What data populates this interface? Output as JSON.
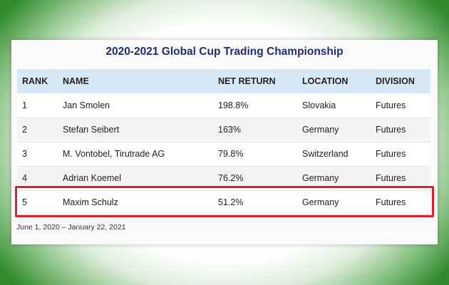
{
  "title": "2020-2021 Global Cup Trading Championship",
  "columns": [
    "RANK",
    "NAME",
    "NET RETURN",
    "LOCATION",
    "DIVISION"
  ],
  "rows": [
    {
      "rank": "1",
      "name": "Jan Smolen",
      "net_return": "198.8%",
      "location": "Slovakia",
      "division": "Futures"
    },
    {
      "rank": "2",
      "name": "Stefan Seibert",
      "net_return": "163%",
      "location": "Germany",
      "division": "Futures"
    },
    {
      "rank": "3",
      "name": "M. Vontobel, Tirutrade AG",
      "net_return": "79.8%",
      "location": "Switzerland",
      "division": "Futures"
    },
    {
      "rank": "4",
      "name": "Adrian Koemel",
      "net_return": "76.2%",
      "location": "Germany",
      "division": "Futures"
    },
    {
      "rank": "5",
      "name": "Maxim Schulz",
      "net_return": "51.2%",
      "location": "Germany",
      "division": "Futures"
    }
  ],
  "highlighted_rank": "5",
  "highlight_color": "#d8232a",
  "title_color": "#1f2d7a",
  "header_bg": "#d7e9f6",
  "footnote": "June 1, 2020 – January 22, 2021"
}
